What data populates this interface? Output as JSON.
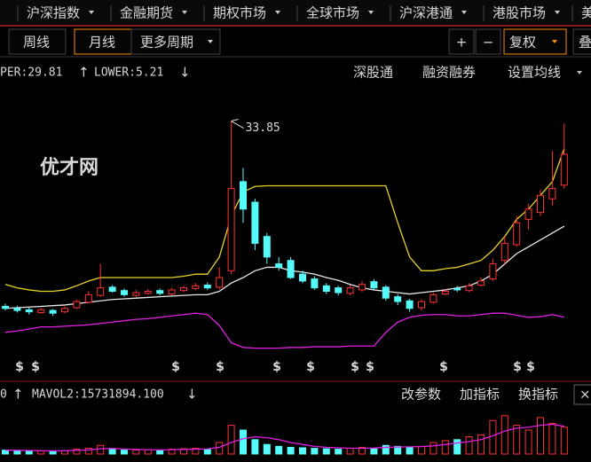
{
  "menu": [
    "沪深指数",
    "金融期货",
    "期权市场",
    "全球市场",
    "沪深港通",
    "港股市场",
    "美"
  ],
  "period_tabs": [
    "周线",
    "月线",
    "更多周期"
  ],
  "tools": [
    "+",
    "−",
    "复权",
    "叠"
  ],
  "indicator_links": [
    "深股通",
    "融资融券",
    "设置均线"
  ],
  "volume_tools": [
    "改参数",
    "加指标",
    "换指标",
    "×"
  ],
  "watermark": "优才网",
  "upper_label": "PER:29.81",
  "lower_label": "LOWER:5.21",
  "mavol1_label": "0",
  "mavol2_label": "MAVOL2:15731894.100",
  "signal_label": "$",
  "chart_data": {
    "type": "candlestick",
    "ylim": [
      0,
      40
    ],
    "open": [
      6.8,
      6.5,
      6.3,
      5.9,
      6.2,
      6.0,
      6.6,
      7.4,
      8.4,
      9.6,
      9.1,
      8.4,
      8.7,
      9.1,
      8.6,
      9.1,
      9.4,
      9.9,
      9.6,
      12,
      25,
      22,
      17,
      13,
      13.5,
      11.5,
      10.8,
      9.8,
      9.5,
      8.7,
      9.2,
      10.4,
      9.6,
      8.2,
      7.6,
      6.6,
      7.4,
      8.6,
      9.4,
      9.1,
      9.9,
      10.8,
      13.5,
      15.8,
      19.5,
      20.5,
      22.5,
      24.5
    ],
    "high": [
      7.2,
      6.9,
      6.6,
      6.6,
      6.4,
      6.8,
      7.8,
      9.0,
      13.0,
      9.9,
      9.4,
      9.2,
      9.3,
      9.4,
      9.5,
      9.8,
      10.2,
      10.3,
      12.5,
      33.85,
      27,
      22.5,
      17.5,
      14,
      14,
      12,
      11.2,
      10.2,
      9.8,
      9.9,
      10.5,
      10.8,
      9.9,
      8.6,
      7.9,
      7.8,
      8.8,
      9.4,
      9.8,
      10.2,
      11,
      13.8,
      17,
      20,
      21.8,
      23.8,
      29.5,
      33.5
    ],
    "low": [
      6.2,
      5.9,
      5.6,
      5.7,
      5.4,
      5.8,
      6.4,
      7.2,
      8.2,
      8.8,
      8.2,
      8.2,
      8.5,
      8.4,
      8.4,
      8.9,
      9.2,
      9.2,
      9.3,
      11.5,
      19,
      15,
      13,
      12,
      10.8,
      10.2,
      9.2,
      8.6,
      8.4,
      8.4,
      8.9,
      9.2,
      7.6,
      7.0,
      6.0,
      6.2,
      7.2,
      8.4,
      8.9,
      8.9,
      9.7,
      10.5,
      13,
      15.5,
      18,
      20,
      21.5,
      24
    ],
    "close": [
      6.5,
      6.2,
      6.0,
      6.3,
      5.8,
      6.5,
      7.5,
      8.5,
      9.5,
      9.0,
      8.5,
      8.8,
      9.0,
      8.7,
      9.2,
      9.5,
      9.8,
      9.5,
      11,
      24,
      21,
      16,
      14,
      12.5,
      11,
      10.5,
      9.5,
      9.0,
      8.8,
      9.5,
      10.0,
      9.5,
      8.0,
      7.5,
      6.5,
      7.5,
      8.5,
      9.0,
      9.2,
      9.8,
      10.5,
      13,
      16,
      19,
      21,
      23,
      24,
      29
    ],
    "up_color": "#ff3232",
    "down_color": "#54fcfc",
    "bands": [
      {
        "color": "#e6d22a",
        "values": [
          10,
          9.5,
          9.2,
          9.0,
          9.0,
          9.2,
          9.8,
          10.5,
          11,
          11,
          11,
          11,
          11,
          11,
          11,
          11.2,
          11.5,
          11.5,
          14,
          20,
          23.5,
          24.3,
          24.4,
          24.4,
          24.4,
          24.4,
          24.4,
          24.4,
          24.4,
          24.4,
          24.4,
          24.4,
          24.4,
          19,
          14,
          12,
          12,
          12.3,
          12.5,
          13,
          13.5,
          15,
          17,
          19.5,
          21,
          23,
          25,
          29.81
        ]
      },
      {
        "color": "#e8e8e8",
        "values": [
          6.5,
          6.6,
          6.7,
          6.8,
          6.9,
          7.0,
          7.2,
          7.4,
          7.6,
          7.8,
          7.9,
          8.0,
          8.1,
          8.2,
          8.3,
          8.4,
          8.5,
          8.5,
          9,
          10.2,
          11,
          12,
          12.5,
          12.5,
          12,
          11.8,
          11.5,
          11,
          10.6,
          10,
          9.5,
          9.2,
          9,
          8.8,
          8.6,
          8.8,
          9,
          9.2,
          9.5,
          9.8,
          10.5,
          11.5,
          13,
          14.5,
          15.5,
          16.5,
          17.5,
          18.5
        ]
      },
      {
        "color": "#e020e0",
        "values": [
          3.0,
          3.2,
          3.5,
          3.8,
          3.8,
          3.9,
          4.0,
          4.1,
          4.3,
          4.5,
          4.7,
          4.9,
          5.0,
          5.2,
          5.4,
          5.6,
          5.8,
          5.6,
          4.0,
          1.5,
          0.8,
          0.7,
          0.7,
          0.7,
          0.8,
          0.8,
          0.9,
          0.9,
          0.9,
          1.0,
          1.0,
          1.0,
          3.0,
          4.5,
          5.2,
          5.5,
          5.6,
          5.6,
          5.4,
          5.4,
          5.6,
          5.8,
          5.8,
          5.5,
          5.2,
          5.3,
          5.6,
          5.21
        ]
      }
    ],
    "volume": {
      "ylim": [
        0,
        50000000
      ],
      "values": [
        4000000,
        3500000,
        3000000,
        3200000,
        2800000,
        3500000,
        5000000,
        6000000,
        9000000,
        5000000,
        4000000,
        4200000,
        4500000,
        4000000,
        5000000,
        5500000,
        6000000,
        5000000,
        12000000,
        30000000,
        25000000,
        15000000,
        10000000,
        8000000,
        7000000,
        6500000,
        6000000,
        5500000,
        5000000,
        6000000,
        7000000,
        6000000,
        9000000,
        8000000,
        7000000,
        8000000,
        12000000,
        14000000,
        15000000,
        18000000,
        20000000,
        35000000,
        40000000,
        30000000,
        25000000,
        38000000,
        32000000,
        28000000
      ],
      "ma_color": "#e020e0",
      "ma": [
        4000000,
        3900000,
        3700000,
        3500000,
        3300000,
        3400000,
        3800000,
        4300000,
        5500000,
        5800000,
        5200000,
        4800000,
        4500000,
        4300000,
        4500000,
        4800000,
        5100000,
        5300000,
        7000000,
        12000000,
        16000000,
        18000000,
        17000000,
        15000000,
        12000000,
        10000000,
        8000000,
        7000000,
        6500000,
        6000000,
        6000000,
        6200000,
        7000000,
        7300000,
        7500000,
        7800000,
        8500000,
        10000000,
        11500000,
        13000000,
        15000000,
        19000000,
        24000000,
        27000000,
        28000000,
        30000000,
        31000000,
        29000000
      ]
    }
  }
}
